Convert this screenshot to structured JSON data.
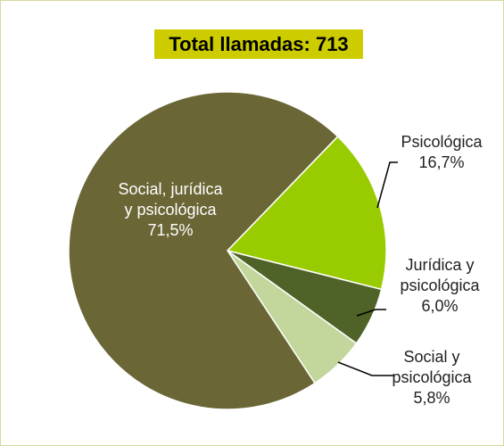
{
  "chart_data": {
    "type": "pie",
    "title": "Total llamadas: 713",
    "categories": [
      "Psicológica",
      "Jurídica y psicológica",
      "Social y psicológica",
      "Social, jurídica y psicológica"
    ],
    "values": [
      16.7,
      6.0,
      5.8,
      71.5
    ],
    "value_labels": [
      "16,7%",
      "6,0%",
      "5,8%",
      "71,5%"
    ],
    "colors": [
      "#99cc00",
      "#4f6228",
      "#c3d69b",
      "#6b6636"
    ]
  }
}
